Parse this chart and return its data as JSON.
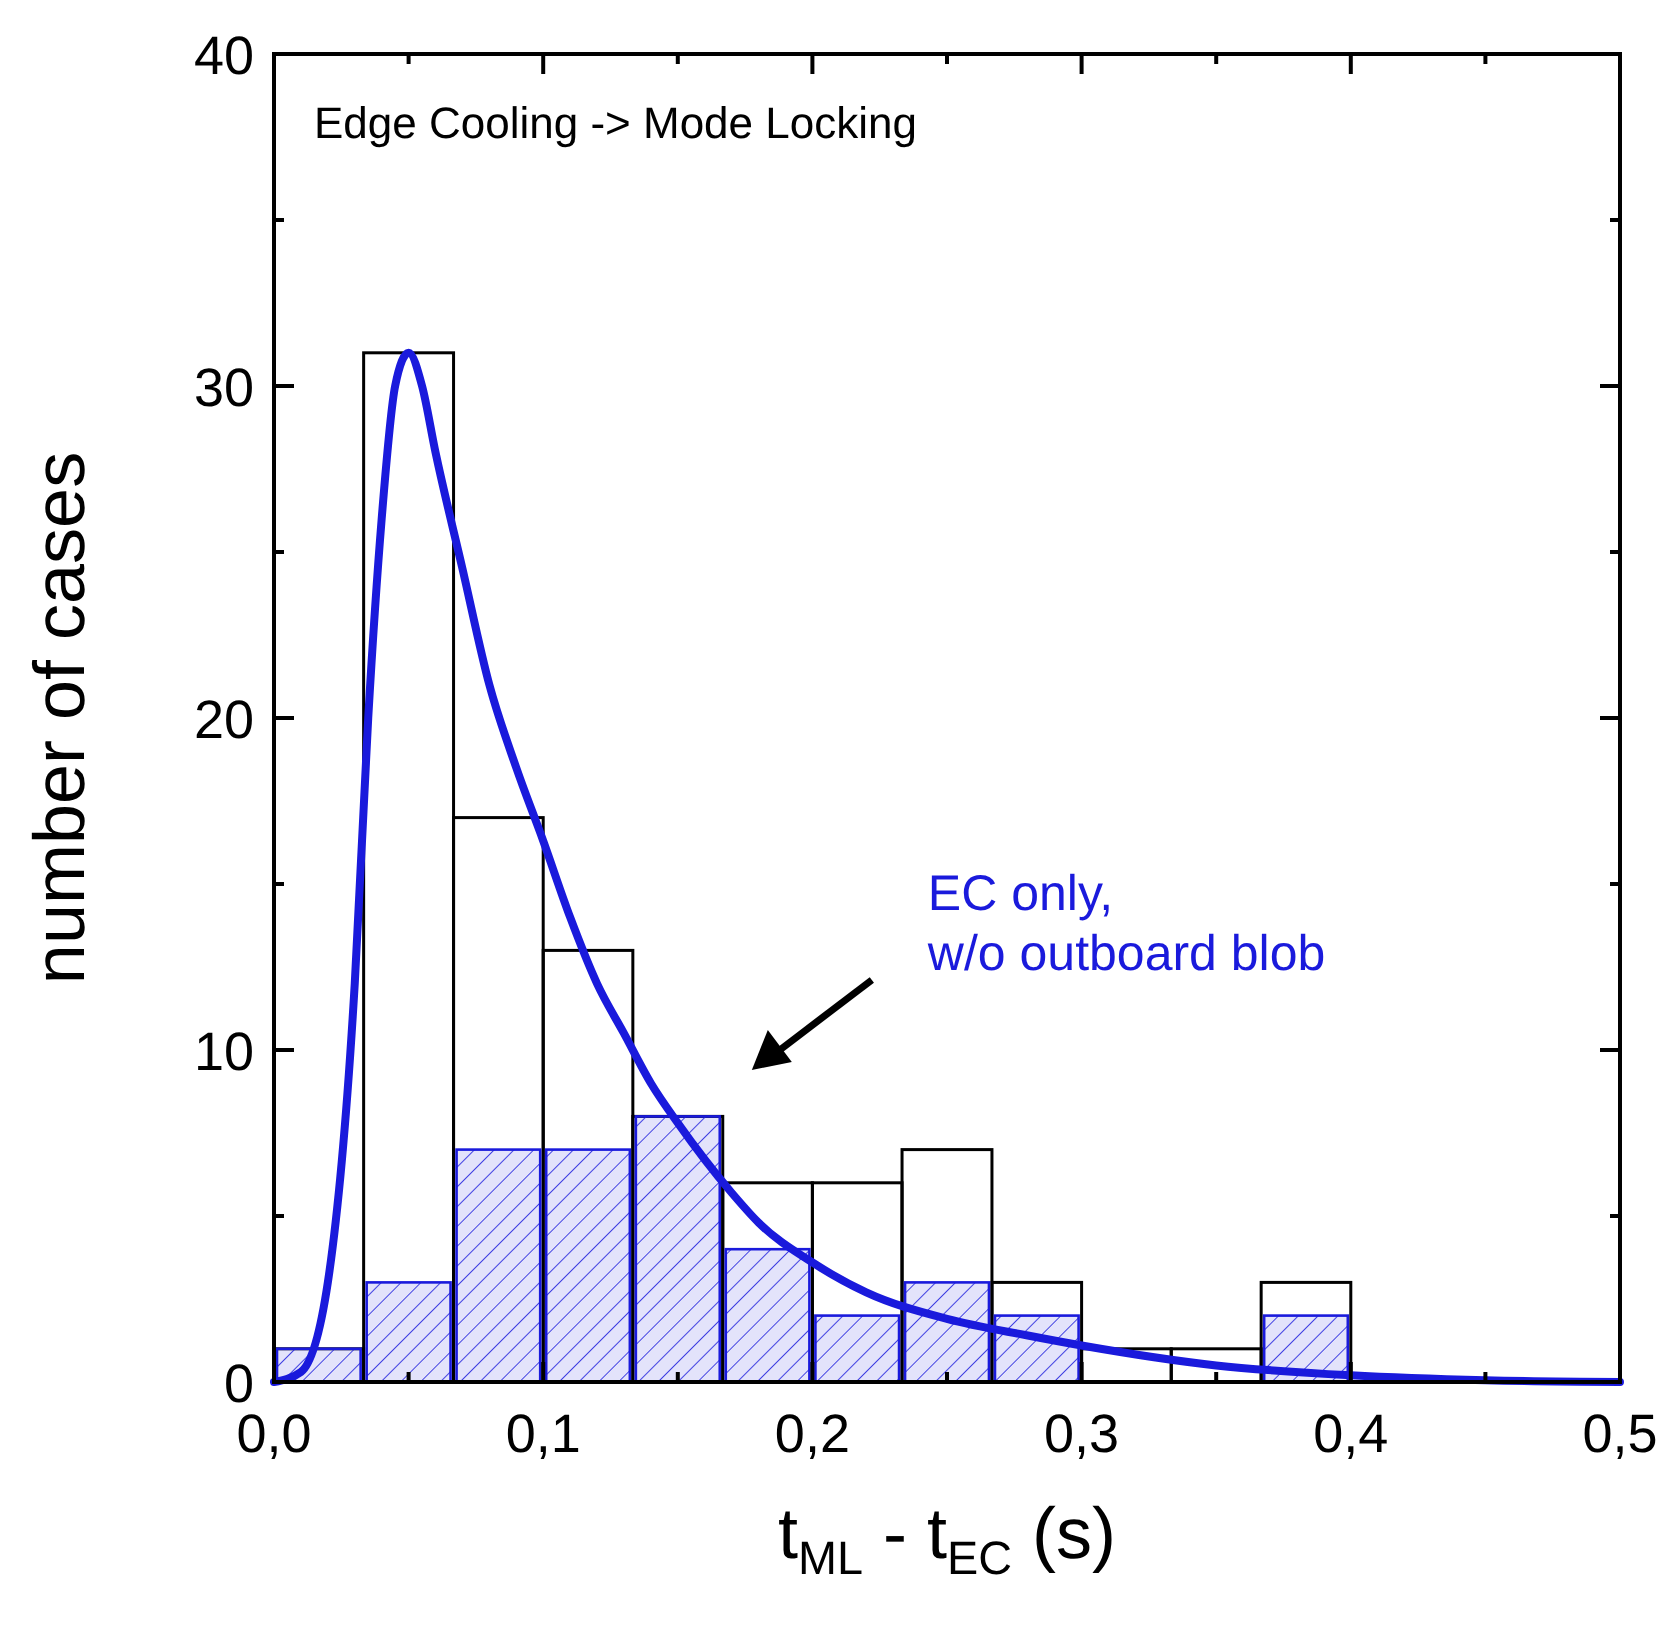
{
  "chart_data": {
    "type": "histogram",
    "title": "Edge Cooling -> Mode Locking",
    "xlabel": "t$_{ML}$ - t$_{EC}$ (s)",
    "ylabel": "number of cases",
    "bins": [
      0,
      0.0333,
      0.0667,
      0.1,
      0.1333,
      0.1667,
      0.2,
      0.2333,
      0.2667,
      0.3,
      0.3333,
      0.3667,
      0.4,
      0.4333,
      0.4667,
      0.5
    ],
    "series": [
      {
        "color": "#000000",
        "values": [
          1,
          31,
          17,
          13,
          8,
          6,
          6,
          7,
          3,
          1,
          1,
          3,
          0,
          0,
          0
        ]
      },
      {
        "color": "#1a1adc",
        "values": [
          1,
          3,
          7,
          7,
          8,
          4,
          2,
          3,
          2,
          0,
          0,
          2,
          0,
          0,
          0
        ]
      },
      {
        "type": "line",
        "color": "#1a1adc",
        "x": [
          0,
          0.01,
          0.02,
          0.03,
          0.035,
          0.04,
          0.045,
          0.05,
          0.055,
          0.06,
          0.07,
          0.08,
          0.09,
          0.1,
          0.11,
          0.12,
          0.13,
          0.14,
          0.15,
          0.16,
          0.17,
          0.18,
          0.2,
          0.22,
          0.25,
          0.28,
          0.3,
          0.35,
          0.4,
          0.45,
          0.5
        ],
        "values": [
          0,
          0.3,
          3,
          12,
          20,
          26,
          30,
          31,
          30,
          28,
          24.5,
          21,
          18.5,
          16.3,
          14,
          12,
          10.5,
          9,
          7.8,
          6.7,
          5.7,
          4.8,
          3.6,
          2.7,
          1.9,
          1.4,
          1.1,
          0.5,
          0.2,
          0.05,
          0
        ]
      }
    ],
    "annotations": [
      "EC only,\nw/o outboard blob"
    ],
    "xlim": [
      0,
      0.5
    ],
    "ylim": [
      0,
      40
    ],
    "xticks": [
      {
        "value": 0,
        "label": "0,0"
      },
      {
        "value": 0.1,
        "label": "0,1"
      },
      {
        "value": 0.2,
        "label": "0,2"
      },
      {
        "value": 0.3,
        "label": "0,3"
      },
      {
        "value": 0.4,
        "label": "0,4"
      },
      {
        "value": 0.5,
        "label": "0,5"
      }
    ],
    "yticks": [
      0,
      10,
      20,
      30,
      40
    ],
    "grid": false
  }
}
